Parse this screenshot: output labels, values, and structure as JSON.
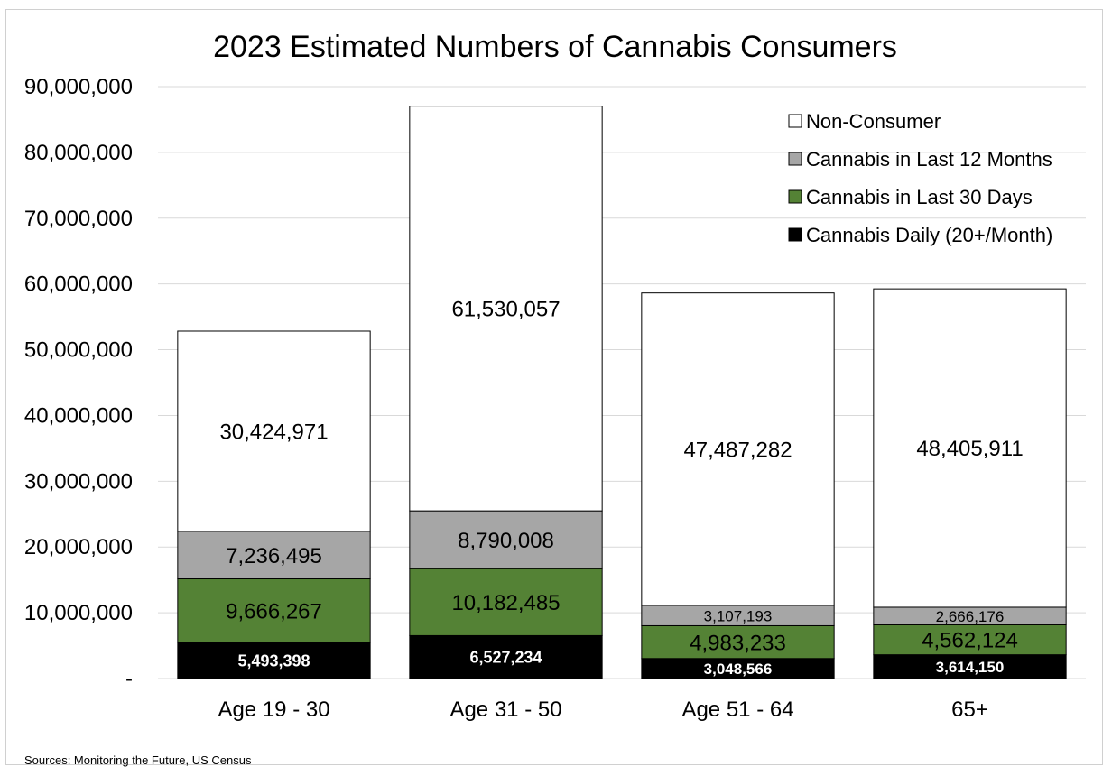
{
  "chart_data": {
    "type": "bar",
    "stacked": true,
    "title": "2023 Estimated Numbers of Cannabis Consumers",
    "categories": [
      "Age 19 - 30",
      "Age 31 - 50",
      "Age 51 - 64",
      "65+"
    ],
    "series": [
      {
        "name": "Cannabis Daily (20+/Month)",
        "color": "#000000",
        "label_color": "#ffffff",
        "values": [
          5493398,
          6527234,
          3048566,
          3614150
        ],
        "labels": [
          "5,493,398",
          "6,527,234",
          "3,048,566",
          "3,614,150"
        ]
      },
      {
        "name": "Cannabis in Last 30 Days",
        "color": "#548235",
        "label_color": "#000000",
        "values": [
          9666267,
          10182485,
          4983233,
          4562124
        ],
        "labels": [
          "9,666,267",
          "10,182,485",
          "4,983,233",
          "4,562,124"
        ]
      },
      {
        "name": "Cannabis in Last 12 Months",
        "color": "#a6a6a6",
        "label_color": "#000000",
        "values": [
          7236495,
          8790008,
          3107193,
          2666176
        ],
        "labels": [
          "7,236,495",
          "8,790,008",
          "3,107,193",
          "2,666,176"
        ]
      },
      {
        "name": "Non-Consumer",
        "color": "#ffffff",
        "label_color": "#000000",
        "values": [
          30424971,
          61530057,
          47487282,
          48405911
        ],
        "labels": [
          "30,424,971",
          "61,530,057",
          "47,487,282",
          "48,405,911"
        ]
      }
    ],
    "ylim": [
      0,
      90000000
    ],
    "ytick_values": [
      0,
      10000000,
      20000000,
      30000000,
      40000000,
      50000000,
      60000000,
      70000000,
      80000000,
      90000000
    ],
    "ytick_labels": [
      "-",
      "10,000,000",
      "20,000,000",
      "30,000,000",
      "40,000,000",
      "50,000,000",
      "60,000,000",
      "70,000,000",
      "80,000,000",
      "90,000,000"
    ],
    "legend_order": [
      "Non-Consumer",
      "Cannabis in Last 12 Months",
      "Cannabis in Last 30 Days",
      "Cannabis Daily (20+/Month)"
    ],
    "legend_position": "top-right",
    "grid": true
  },
  "source_note": "Sources: Monitoring the Future, US Census"
}
